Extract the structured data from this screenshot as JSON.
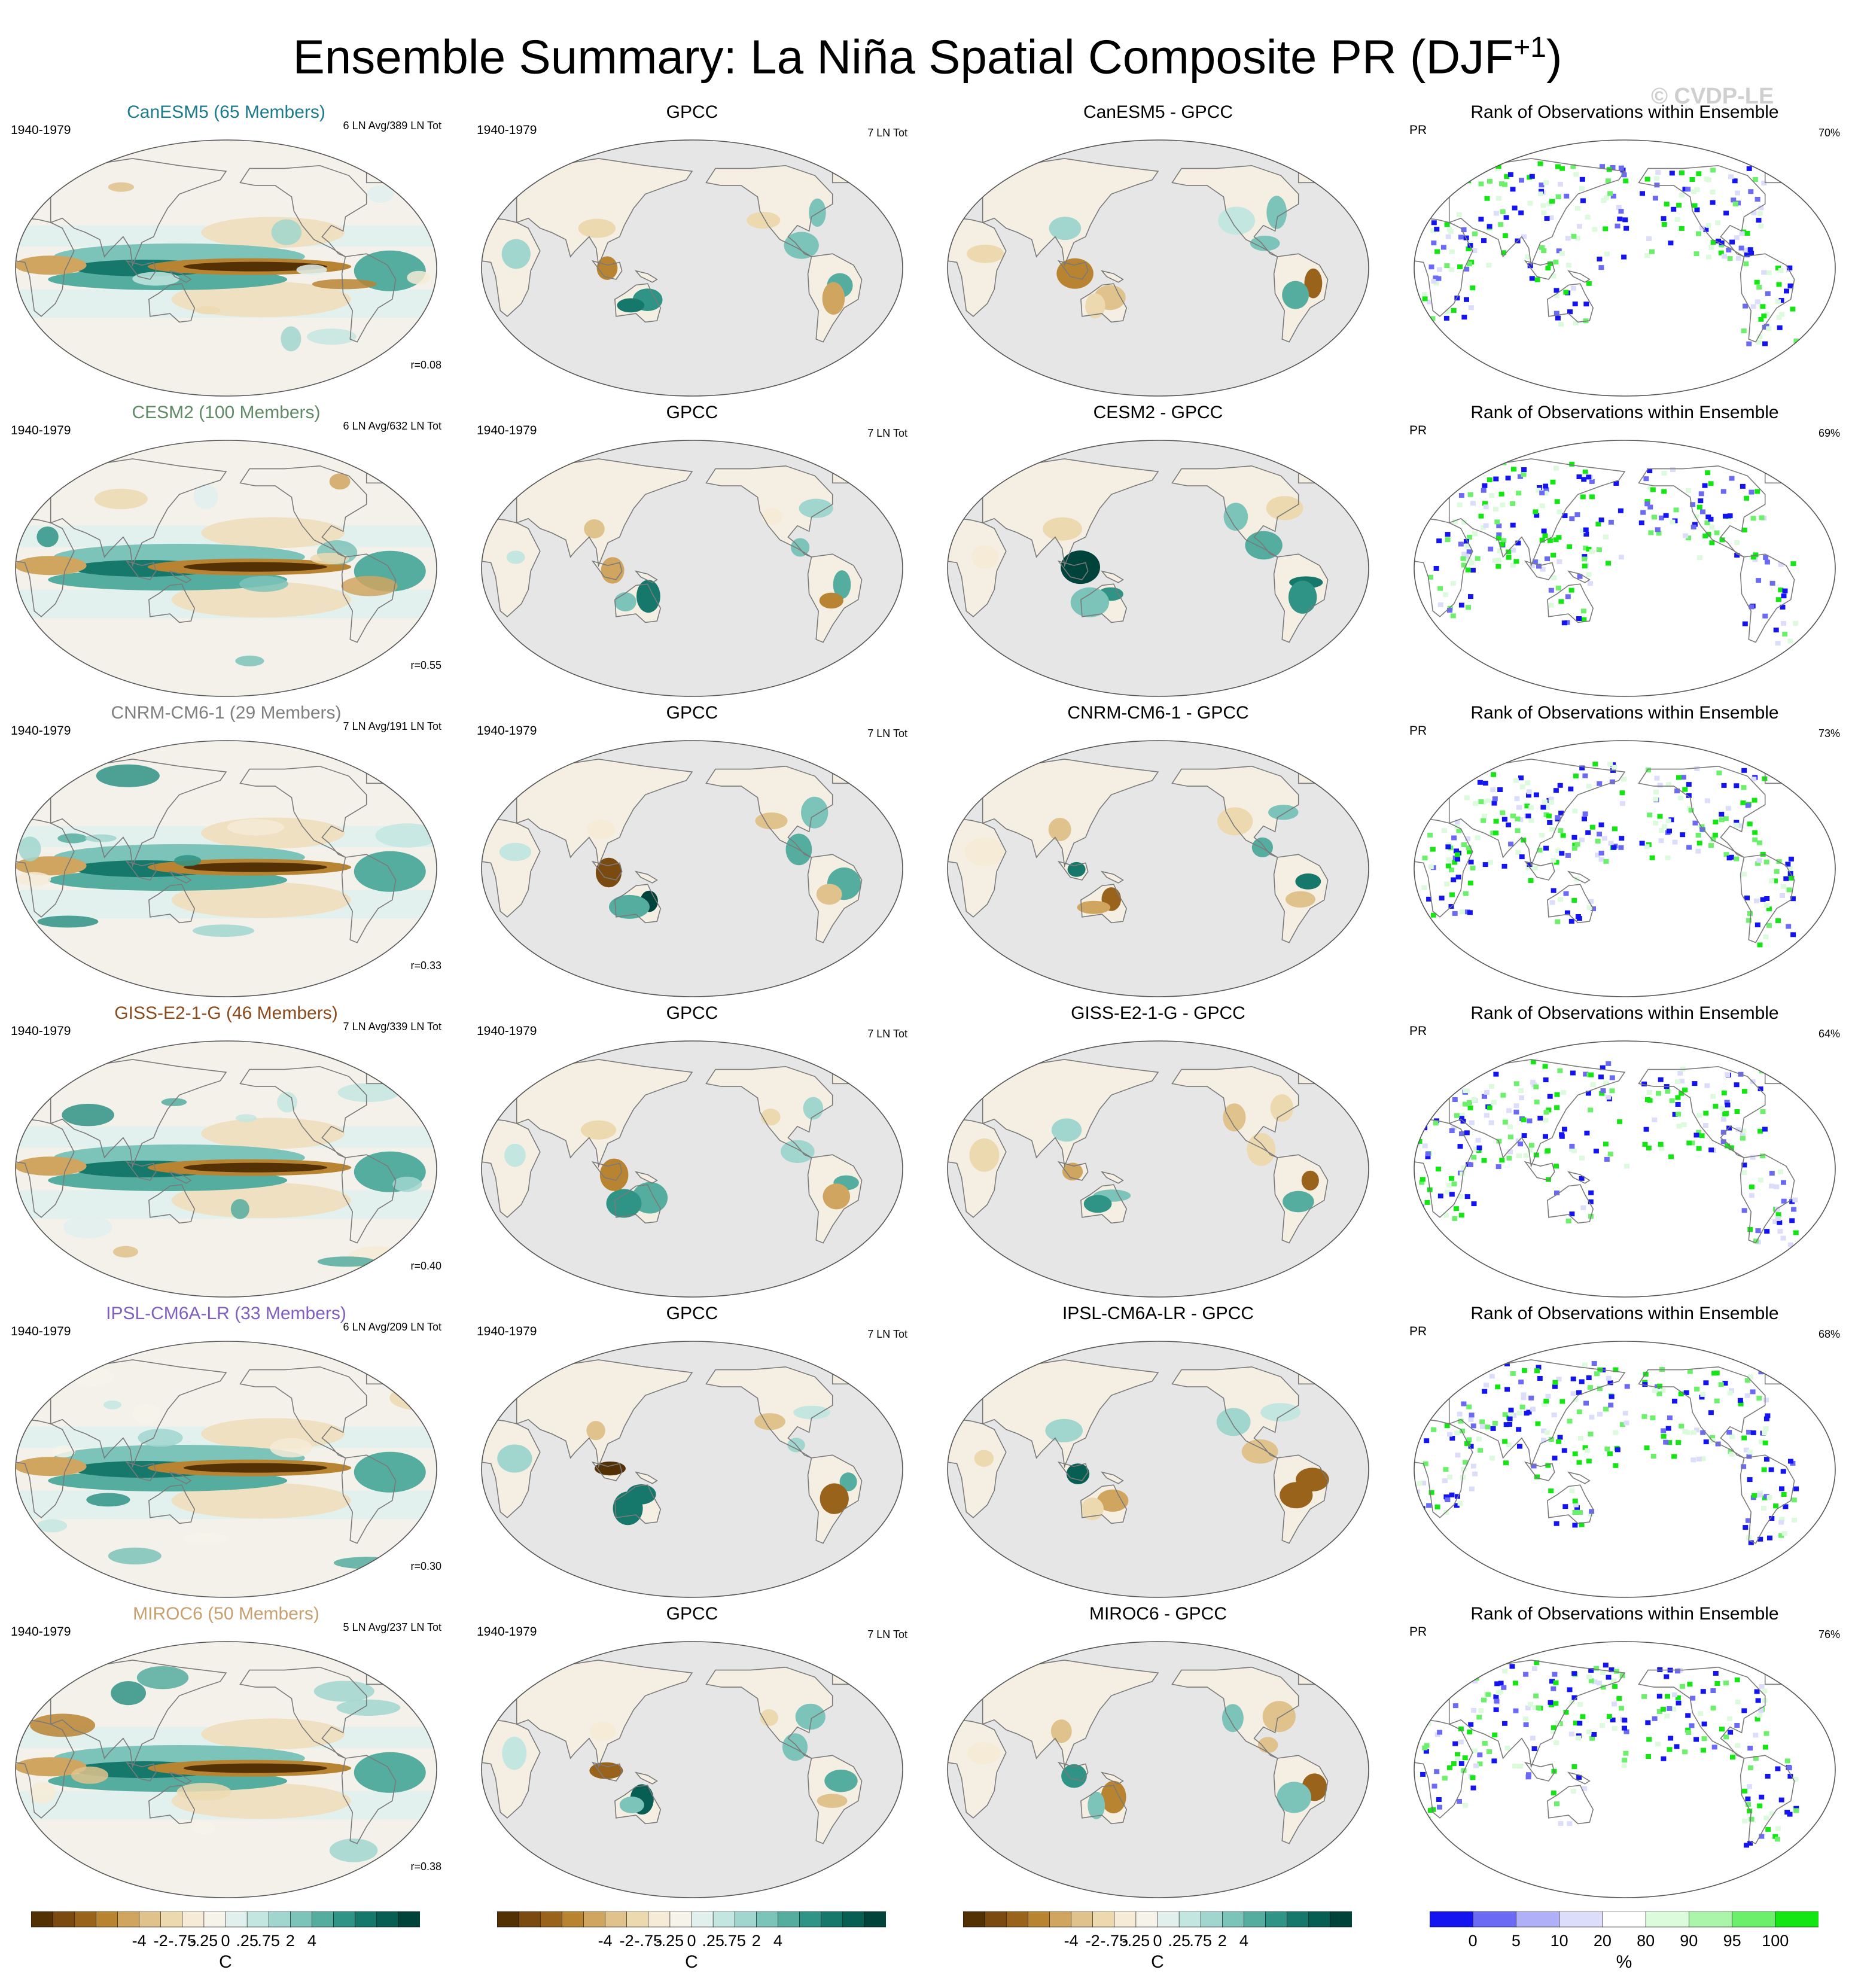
{
  "header": {
    "title": "Ensemble Summary: La Niña Spatial Composite PR (DJF",
    "title_sup": "+1",
    "title_close": ")",
    "watermark": "© CVDP-LE"
  },
  "chart_data": {
    "type": "heatmap",
    "period": "1940-1979",
    "observations": "GPCC",
    "observations_count": "7 LN Tot",
    "rank_title": "Rank of Observations within Ensemble",
    "rank_variable": "PR",
    "rows": [
      {
        "model": "CanESM5",
        "members_label": "CanESM5 (65 Members)",
        "color": "#1b7a8c",
        "count": "6 LN Avg/389 LN Tot",
        "r": "r=0.08",
        "diff_title": "CanESM5 - GPCC",
        "rank_pct": "70%"
      },
      {
        "model": "CESM2",
        "members_label": "CESM2 (100 Members)",
        "color": "#5e8a66",
        "count": "6 LN Avg/632 LN Tot",
        "r": "r=0.55",
        "diff_title": "CESM2 - GPCC",
        "rank_pct": "69%"
      },
      {
        "model": "CNRM-CM6-1",
        "members_label": "CNRM-CM6-1 (29 Members)",
        "color": "#808080",
        "count": "7 LN Avg/191 LN Tot",
        "r": "r=0.33",
        "diff_title": "CNRM-CM6-1 - GPCC",
        "rank_pct": "73%"
      },
      {
        "model": "GISS-E2-1-G",
        "members_label": "GISS-E2-1-G (46 Members)",
        "color": "#8a4a1c",
        "count": "7 LN Avg/339 LN Tot",
        "r": "r=0.40",
        "diff_title": "GISS-E2-1-G - GPCC",
        "rank_pct": "64%"
      },
      {
        "model": "IPSL-CM6A-LR",
        "members_label": "IPSL-CM6A-LR (33 Members)",
        "color": "#7f5fc0",
        "count": "6 LN Avg/209 LN Tot",
        "r": "r=0.30",
        "diff_title": "IPSL-CM6A-LR - GPCC",
        "rank_pct": "68%"
      },
      {
        "model": "MIROC6",
        "members_label": "MIROC6 (50 Members)",
        "color": "#c8a070",
        "count": "5 LN Avg/237 LN Tot",
        "r": "r=0.38",
        "diff_title": "MIROC6 - GPCC",
        "rank_pct": "76%"
      }
    ],
    "colorbar": {
      "tick_labels": [
        "-4",
        "-2",
        "-.75",
        "-.25",
        "0",
        ".25",
        ".75",
        "2",
        "4"
      ],
      "unit": "C",
      "colors": [
        "#543005",
        "#7a4a10",
        "#99631c",
        "#b98432",
        "#d0a55f",
        "#dfc28c",
        "#ecd9b0",
        "#f5ebd6",
        "#f5f3ea",
        "#e1f0ed",
        "#c3e6e0",
        "#a0d6ce",
        "#7cc3b9",
        "#55ad9f",
        "#2f9385",
        "#15786b",
        "#075e52",
        "#00433a"
      ]
    },
    "rank_colorbar": {
      "tick_labels": [
        "0",
        "5",
        "10",
        "20",
        "80",
        "90",
        "95",
        "100"
      ],
      "unit": "%",
      "colors": [
        "#1414f0",
        "#6a6af5",
        "#b0b0f8",
        "#dcdcfb",
        "#ffffff",
        "#dcfadc",
        "#aaf5aa",
        "#6cf06c",
        "#14e614"
      ]
    },
    "map_colors": {
      "land_gray": "#e6e6e6",
      "coast": "#7a7a7a"
    }
  }
}
